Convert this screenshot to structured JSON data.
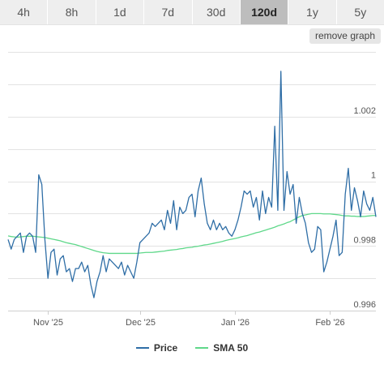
{
  "tabs": [
    {
      "label": "4h",
      "active": false
    },
    {
      "label": "8h",
      "active": false
    },
    {
      "label": "1d",
      "active": false
    },
    {
      "label": "7d",
      "active": false
    },
    {
      "label": "30d",
      "active": false
    },
    {
      "label": "120d",
      "active": true
    },
    {
      "label": "1y",
      "active": false
    },
    {
      "label": "5y",
      "active": false
    }
  ],
  "remove_graph_label": "remove graph",
  "colors": {
    "price": "#2f6ea6",
    "sma": "#5fd88a"
  },
  "chart_data": {
    "type": "line",
    "x_ticks": [
      "Nov '25",
      "Dec '25",
      "Jan '26",
      "Feb '26"
    ],
    "y_ticks": [
      "0.996",
      "0.998",
      "1",
      "1.002"
    ],
    "ylim": [
      0.996,
      1.004
    ],
    "grid": true,
    "legend_position": "bottom-center",
    "x": [
      "2025-10-19",
      "2025-10-20",
      "2025-10-21",
      "2025-10-22",
      "2025-10-23",
      "2025-10-24",
      "2025-10-25",
      "2025-10-26",
      "2025-10-27",
      "2025-10-28",
      "2025-10-29",
      "2025-10-30",
      "2025-10-31",
      "2025-11-01",
      "2025-11-02",
      "2025-11-03",
      "2025-11-04",
      "2025-11-05",
      "2025-11-06",
      "2025-11-07",
      "2025-11-08",
      "2025-11-09",
      "2025-11-10",
      "2025-11-11",
      "2025-11-12",
      "2025-11-13",
      "2025-11-14",
      "2025-11-15",
      "2025-11-16",
      "2025-11-17",
      "2025-11-18",
      "2025-11-19",
      "2025-11-20",
      "2025-11-21",
      "2025-11-22",
      "2025-11-23",
      "2025-11-24",
      "2025-11-25",
      "2025-11-26",
      "2025-11-27",
      "2025-11-28",
      "2025-11-29",
      "2025-11-30",
      "2025-12-01",
      "2025-12-02",
      "2025-12-03",
      "2025-12-04",
      "2025-12-05",
      "2025-12-06",
      "2025-12-07",
      "2025-12-08",
      "2025-12-09",
      "2025-12-10",
      "2025-12-11",
      "2025-12-12",
      "2025-12-13",
      "2025-12-14",
      "2025-12-15",
      "2025-12-16",
      "2025-12-17",
      "2025-12-18",
      "2025-12-19",
      "2025-12-20",
      "2025-12-21",
      "2025-12-22",
      "2025-12-23",
      "2025-12-24",
      "2025-12-25",
      "2025-12-26",
      "2025-12-27",
      "2025-12-28",
      "2025-12-29",
      "2025-12-30",
      "2025-12-31",
      "2026-01-01",
      "2026-01-02",
      "2026-01-03",
      "2026-01-04",
      "2026-01-05",
      "2026-01-06",
      "2026-01-07",
      "2026-01-08",
      "2026-01-09",
      "2026-01-10",
      "2026-01-11",
      "2026-01-12",
      "2026-01-13",
      "2026-01-14",
      "2026-01-15",
      "2026-01-16",
      "2026-01-17",
      "2026-01-18",
      "2026-01-19",
      "2026-01-20",
      "2026-01-21",
      "2026-01-22",
      "2026-01-23",
      "2026-01-24",
      "2026-01-25",
      "2026-01-26",
      "2026-01-27",
      "2026-01-28",
      "2026-01-29",
      "2026-01-30",
      "2026-01-31",
      "2026-02-01",
      "2026-02-02",
      "2026-02-03",
      "2026-02-04",
      "2026-02-05",
      "2026-02-06",
      "2026-02-07",
      "2026-02-08",
      "2026-02-09",
      "2026-02-10",
      "2026-02-11",
      "2026-02-12",
      "2026-02-13",
      "2026-02-14",
      "2026-02-15",
      "2026-02-16"
    ],
    "series": [
      {
        "name": "Price",
        "values": [
          0.9982,
          0.9979,
          0.9982,
          0.9983,
          0.9984,
          0.9978,
          0.9983,
          0.9984,
          0.9983,
          0.9978,
          1.0002,
          0.9999,
          0.9982,
          0.997,
          0.9978,
          0.9979,
          0.9971,
          0.9976,
          0.9977,
          0.9972,
          0.9973,
          0.9969,
          0.9973,
          0.9973,
          0.9975,
          0.9972,
          0.9974,
          0.9968,
          0.9964,
          0.9969,
          0.9972,
          0.9977,
          0.9972,
          0.9976,
          0.9975,
          0.9974,
          0.9973,
          0.9975,
          0.9971,
          0.9974,
          0.9972,
          0.997,
          0.9975,
          0.9981,
          0.9982,
          0.9983,
          0.9984,
          0.9987,
          0.9986,
          0.9987,
          0.9988,
          0.9985,
          0.9991,
          0.9987,
          0.9994,
          0.9985,
          0.9992,
          0.999,
          0.9991,
          0.9995,
          0.9996,
          0.9989,
          0.9997,
          1.0001,
          0.9993,
          0.9987,
          0.9985,
          0.9988,
          0.9985,
          0.9987,
          0.9985,
          0.9986,
          0.9984,
          0.9983,
          0.9985,
          0.9988,
          0.9992,
          0.9997,
          0.9996,
          0.9997,
          0.9992,
          0.9995,
          0.9988,
          0.9997,
          0.999,
          0.9995,
          0.9992,
          1.0017,
          0.9991,
          1.0034,
          0.9991,
          1.0003,
          0.9996,
          0.9999,
          0.9987,
          0.9995,
          0.999,
          0.9987,
          0.9981,
          0.9978,
          0.9979,
          0.9986,
          0.9985,
          0.9972,
          0.9975,
          0.9979,
          0.9983,
          0.9988,
          0.9977,
          0.9978,
          0.9996,
          1.0004,
          0.9991,
          0.9998,
          0.9994,
          0.9989,
          0.9997,
          0.9993,
          0.9991,
          0.9995,
          0.9989
        ]
      },
      {
        "name": "SMA 50",
        "values": [
          0.99831,
          0.99829,
          0.99828,
          0.99827,
          0.99828,
          0.99829,
          0.9983,
          0.9983,
          0.9983,
          0.99829,
          0.99828,
          0.99827,
          0.99826,
          0.99824,
          0.99822,
          0.9982,
          0.99818,
          0.99816,
          0.99813,
          0.9981,
          0.99808,
          0.99806,
          0.99804,
          0.99801,
          0.99798,
          0.99795,
          0.99792,
          0.99789,
          0.99786,
          0.99783,
          0.99781,
          0.99779,
          0.99778,
          0.99777,
          0.99777,
          0.99777,
          0.99777,
          0.99777,
          0.99777,
          0.99777,
          0.99777,
          0.99777,
          0.99777,
          0.99778,
          0.99779,
          0.9978,
          0.9978,
          0.9978,
          0.99781,
          0.99782,
          0.99783,
          0.99784,
          0.99786,
          0.99787,
          0.99788,
          0.99789,
          0.99791,
          0.99792,
          0.99794,
          0.99795,
          0.99796,
          0.99798,
          0.99799,
          0.99801,
          0.99803,
          0.99804,
          0.99806,
          0.99808,
          0.9981,
          0.99812,
          0.99814,
          0.99817,
          0.99819,
          0.99821,
          0.99823,
          0.99825,
          0.99828,
          0.9983,
          0.99832,
          0.99835,
          0.99838,
          0.99841,
          0.99843,
          0.99846,
          0.99849,
          0.99852,
          0.99855,
          0.99858,
          0.99862,
          0.99865,
          0.99868,
          0.99872,
          0.99875,
          0.9988,
          0.99885,
          0.9989,
          0.99894,
          0.99896,
          0.99898,
          0.999,
          0.999,
          0.999,
          0.999,
          0.99899,
          0.99899,
          0.99899,
          0.99898,
          0.99897,
          0.99896,
          0.99894,
          0.99893,
          0.99893,
          0.99892,
          0.99892,
          0.99891,
          0.99891,
          0.99891,
          0.99892,
          0.99893,
          0.99894,
          0.99894
        ]
      }
    ]
  }
}
